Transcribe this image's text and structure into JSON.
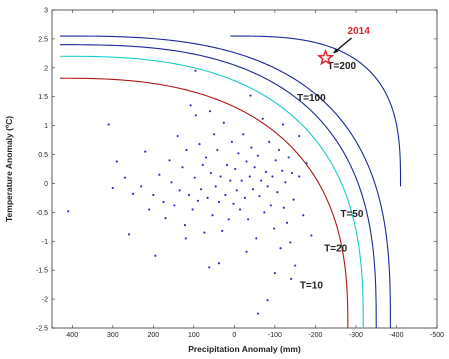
{
  "chart_data": {
    "type": "scatter",
    "xlabel": "Precipitation Anomaly (mm)",
    "ylabel": "Temperature Anomaly (ºC)",
    "xlim": [
      450,
      -500
    ],
    "ylim": [
      -2.5,
      3
    ],
    "xticks": [
      400,
      300,
      200,
      100,
      0,
      -100,
      -200,
      -300,
      -400,
      -500
    ],
    "xtick_labels": [
      "400",
      "300",
      "200",
      "100",
      "0",
      "-100",
      "-200",
      "-300",
      "-400",
      "-500"
    ],
    "yticks": [
      3,
      2.5,
      2,
      1.5,
      1,
      0.5,
      0,
      -0.5,
      -1,
      -1.5,
      -2,
      -2.5
    ],
    "ytick_labels": [
      "3",
      "2.5",
      "2",
      "1.5",
      "1",
      "0.5",
      "0",
      "-0.5",
      "-1",
      "-1.5",
      "-2",
      "-2.5"
    ],
    "grid": false,
    "points": [
      [
        410,
        -0.48
      ],
      [
        310,
        1.02
      ],
      [
        300,
        -0.08
      ],
      [
        290,
        0.38
      ],
      [
        270,
        0.1
      ],
      [
        260,
        -0.88
      ],
      [
        250,
        -0.18
      ],
      [
        230,
        -0.05
      ],
      [
        220,
        0.55
      ],
      [
        210,
        -0.45
      ],
      [
        200,
        -0.2
      ],
      [
        195,
        -1.25
      ],
      [
        185,
        0.15
      ],
      [
        175,
        -0.32
      ],
      [
        170,
        -0.6
      ],
      [
        160,
        0.4
      ],
      [
        155,
        0.02
      ],
      [
        148,
        -0.38
      ],
      [
        140,
        0.82
      ],
      [
        135,
        -0.12
      ],
      [
        128,
        0.28
      ],
      [
        122,
        -0.72
      ],
      [
        118,
        0.58
      ],
      [
        112,
        -0.2
      ],
      [
        108,
        1.35
      ],
      [
        103,
        -0.45
      ],
      [
        98,
        0.1
      ],
      [
        95,
        1.18
      ],
      [
        90,
        -0.3
      ],
      [
        86,
        0.68
      ],
      [
        82,
        -0.1
      ],
      [
        78,
        0.32
      ],
      [
        74,
        -0.85
      ],
      [
        70,
        0.45
      ],
      [
        66,
        -0.25
      ],
      [
        62,
        -1.45
      ],
      [
        58,
        0.18
      ],
      [
        54,
        -0.55
      ],
      [
        50,
        0.85
      ],
      [
        46,
        -0.05
      ],
      [
        42,
        0.58
      ],
      [
        38,
        -0.32
      ],
      [
        34,
        0.12
      ],
      [
        30,
        -0.82
      ],
      [
        26,
        1.05
      ],
      [
        22,
        -0.2
      ],
      [
        18,
        0.32
      ],
      [
        14,
        -0.62
      ],
      [
        10,
        0.05
      ],
      [
        6,
        0.72
      ],
      [
        2,
        -0.35
      ],
      [
        -2,
        0.25
      ],
      [
        -6,
        -0.12
      ],
      [
        -10,
        0.52
      ],
      [
        -14,
        -0.45
      ],
      [
        -18,
        0.05
      ],
      [
        -22,
        0.85
      ],
      [
        -26,
        -0.25
      ],
      [
        -30,
        0.38
      ],
      [
        -34,
        -0.62
      ],
      [
        -38,
        0.12
      ],
      [
        -42,
        0.62
      ],
      [
        -46,
        -0.1
      ],
      [
        -50,
        0.28
      ],
      [
        -54,
        -0.95
      ],
      [
        -58,
        0.48
      ],
      [
        -62,
        -0.22
      ],
      [
        -66,
        0.05
      ],
      [
        -70,
        1.12
      ],
      [
        -74,
        -0.5
      ],
      [
        -78,
        0.2
      ],
      [
        -82,
        -0.05
      ],
      [
        -86,
        0.72
      ],
      [
        -90,
        -0.38
      ],
      [
        -94,
        0.12
      ],
      [
        -98,
        -0.78
      ],
      [
        -102,
        0.4
      ],
      [
        -106,
        -0.15
      ],
      [
        -110,
        0.58
      ],
      [
        -114,
        -1.12
      ],
      [
        -118,
        0.22
      ],
      [
        -122,
        -0.42
      ],
      [
        -126,
        0.02
      ],
      [
        -130,
        -0.68
      ],
      [
        -134,
        0.45
      ],
      [
        -138,
        -1.02
      ],
      [
        -142,
        0.18
      ],
      [
        -146,
        -0.28
      ],
      [
        -150,
        -1.42
      ],
      [
        -160,
        0.12
      ],
      [
        -170,
        -0.55
      ],
      [
        -178,
        0.35
      ],
      [
        -190,
        -0.9
      ],
      [
        -82,
        -2.02
      ],
      [
        -58,
        -2.25
      ],
      [
        -30,
        -1.18
      ],
      [
        38,
        -1.38
      ],
      [
        120,
        -0.95
      ],
      [
        -120,
        1.02
      ],
      [
        -160,
        0.82
      ],
      [
        60,
        1.25
      ],
      [
        -40,
        1.52
      ],
      [
        96,
        1.95
      ],
      [
        -140,
        -1.65
      ],
      [
        -100,
        -1.55
      ]
    ],
    "curves": [
      {
        "name": "T=10",
        "color": "#b01818",
        "x0": 430,
        "y0": 1.82,
        "asym_x": -280,
        "asym_y": -2.5,
        "p": 2.6
      },
      {
        "name": "T=20",
        "color": "#19cccc",
        "x0": 430,
        "y0": 2.2,
        "asym_x": -318,
        "asym_y": -2.5,
        "p": 2.7
      },
      {
        "name": "T=50",
        "color": "#1c2a99",
        "x0": 430,
        "y0": 2.4,
        "asym_x": -350,
        "asym_y": -2.5,
        "p": 2.8
      },
      {
        "name": "T=100",
        "color": "#1c2a99",
        "x0": 430,
        "y0": 2.55,
        "asym_x": -385,
        "asym_y": -2.5,
        "p": 2.9
      },
      {
        "name": "T=200",
        "color": "#1c2a99",
        "x0": 10,
        "y0": 2.55,
        "asym_x": -410,
        "asym_y": -0.05,
        "p": 3.0
      }
    ],
    "marker_2014": {
      "x": -225,
      "y": 2.17,
      "label": "2014"
    },
    "curve_labels": [
      {
        "text": "T=200",
        "x": -265,
        "y": 1.98
      },
      {
        "text": "T=100",
        "x": -190,
        "y": 1.43
      },
      {
        "text": "T=50",
        "x": -290,
        "y": -0.58
      },
      {
        "text": "T=20",
        "x": -250,
        "y": -1.18
      },
      {
        "text": "T=10",
        "x": -190,
        "y": -1.82
      }
    ],
    "colors": {
      "points": "#3232cc",
      "marker": "#e0242b",
      "annotation": "#e0242b",
      "arrow": "#111111"
    }
  }
}
